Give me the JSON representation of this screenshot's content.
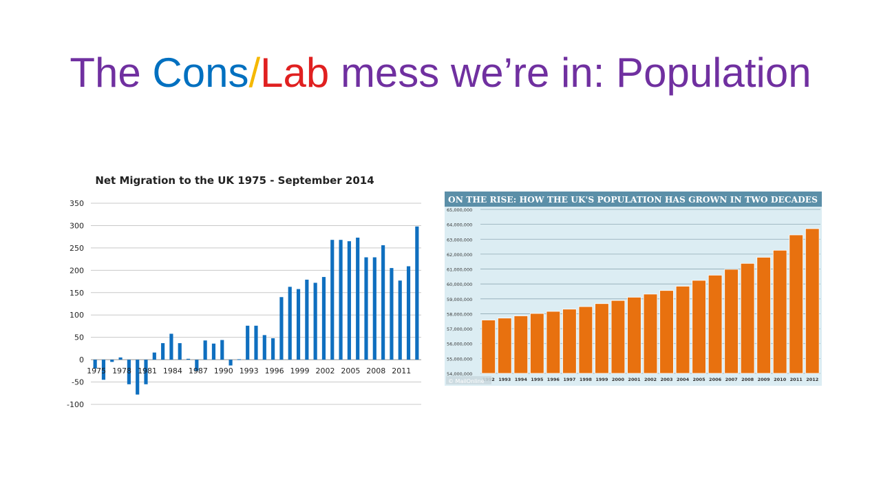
{
  "slide": {
    "title_parts": [
      {
        "text": "The ",
        "color": "#7030a0"
      },
      {
        "text": "Cons",
        "color": "#0070c0"
      },
      {
        "text": "/",
        "color": "#f5b800"
      },
      {
        "text": "Lab",
        "color": "#e02020"
      },
      {
        "text": " mess we’re in: Population",
        "color": "#7030a0"
      }
    ]
  },
  "chart_data": [
    {
      "type": "bar",
      "title": "Net Migration to the UK 1975 - September 2014",
      "xlabel": "",
      "ylabel": "",
      "ylim": [
        -100,
        350
      ],
      "yticks": [
        350,
        300,
        250,
        200,
        150,
        100,
        50,
        0,
        -50,
        -100
      ],
      "grid": true,
      "bar_color": "#0f6fbf",
      "tick_labels": [
        "1975",
        "1978",
        "1981",
        "1984",
        "1987",
        "1990",
        "1993",
        "1996",
        "1999",
        "2002",
        "2005",
        "2008",
        "2011"
      ],
      "values": [
        -20,
        -45,
        -5,
        5,
        -55,
        -78,
        -55,
        16,
        37,
        58,
        37,
        2,
        -25,
        43,
        36,
        44,
        -13,
        1,
        76,
        76,
        55,
        48,
        140,
        163,
        158,
        179,
        172,
        185,
        268,
        268,
        265,
        273,
        229,
        229,
        256,
        205,
        177,
        209,
        298
      ]
    },
    {
      "type": "bar",
      "title": "ON THE RISE: HOW THE UK'S POPULATION HAS GROWN IN TWO DECADES",
      "xlabel": "",
      "ylabel": "",
      "ylim": [
        54000000,
        65000000
      ],
      "yticks": [
        "65,000,000",
        "64,000,000",
        "63,000,000",
        "62,000,000",
        "61,000,000",
        "60,000,000",
        "59,000,000",
        "58,000,000",
        "57,000,000",
        "56,000,000",
        "55,000,000",
        "54,000,000"
      ],
      "grid": true,
      "bar_color": "#e8710f",
      "title_bar_color": "#5b8fa8",
      "background_color": "#dcedf3",
      "watermark": "© MailOnline",
      "categories": [
        "1992",
        "1993",
        "1994",
        "1995",
        "1996",
        "1997",
        "1998",
        "1999",
        "2000",
        "2001",
        "2002",
        "2003",
        "2004",
        "2005",
        "2006",
        "2007",
        "2008",
        "2009",
        "2010",
        "2011",
        "2012"
      ],
      "values": [
        57580000,
        57710000,
        57860000,
        58020000,
        58160000,
        58310000,
        58480000,
        58680000,
        58890000,
        59110000,
        59320000,
        59560000,
        59850000,
        60240000,
        60590000,
        60980000,
        61380000,
        61790000,
        62260000,
        63290000,
        63710000
      ]
    }
  ]
}
